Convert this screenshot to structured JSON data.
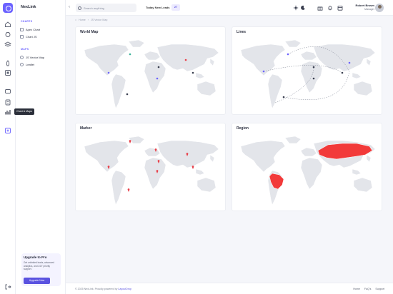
{
  "brand": {
    "name": "NexLink"
  },
  "rail": {
    "icons": [
      "home-icon",
      "bug-icon",
      "layers-icon",
      "rocket-icon",
      "box-icon",
      "ticket-icon",
      "clipboard-icon",
      "chart-icon",
      "plus-square-icon",
      "logout-icon"
    ],
    "tooltip": "Chart & Maps"
  },
  "sidebar": {
    "sections": [
      {
        "title": "CHARTS",
        "items": [
          {
            "label": "Apex Chart"
          },
          {
            "label": "Chart JS"
          }
        ]
      },
      {
        "title": "MAPS",
        "items": [
          {
            "label": "JS Vector Map"
          },
          {
            "label": "Leaflet"
          }
        ]
      }
    ],
    "promo": {
      "title": "Upgrade to Pro",
      "text": "Get unlimited leads, advanced analytics, and 24/7 priority support.",
      "button": "Upgrade Now"
    }
  },
  "header": {
    "search_placeholder": "Search anything",
    "leads_label": "Today New Leads",
    "leads_count": "27",
    "user": {
      "name": "Robert Brown",
      "role": "Manager"
    }
  },
  "breadcrumb": {
    "items": [
      "Home",
      "JS Vector Map"
    ]
  },
  "cards": [
    {
      "title": "World Map"
    },
    {
      "title": "Lines"
    },
    {
      "title": "Marker"
    },
    {
      "title": "Region"
    }
  ],
  "colors": {
    "accent": "#6c63ff",
    "land": "#e3e5ea",
    "region_highlight": "#f23a3a",
    "marker": "#e8404a"
  },
  "footer": {
    "copyright": "© 2025 NexLink. Proudly powered by",
    "powered_by": "LayoutDrop",
    "links": [
      "Home",
      "FaQ's",
      "Support"
    ]
  }
}
